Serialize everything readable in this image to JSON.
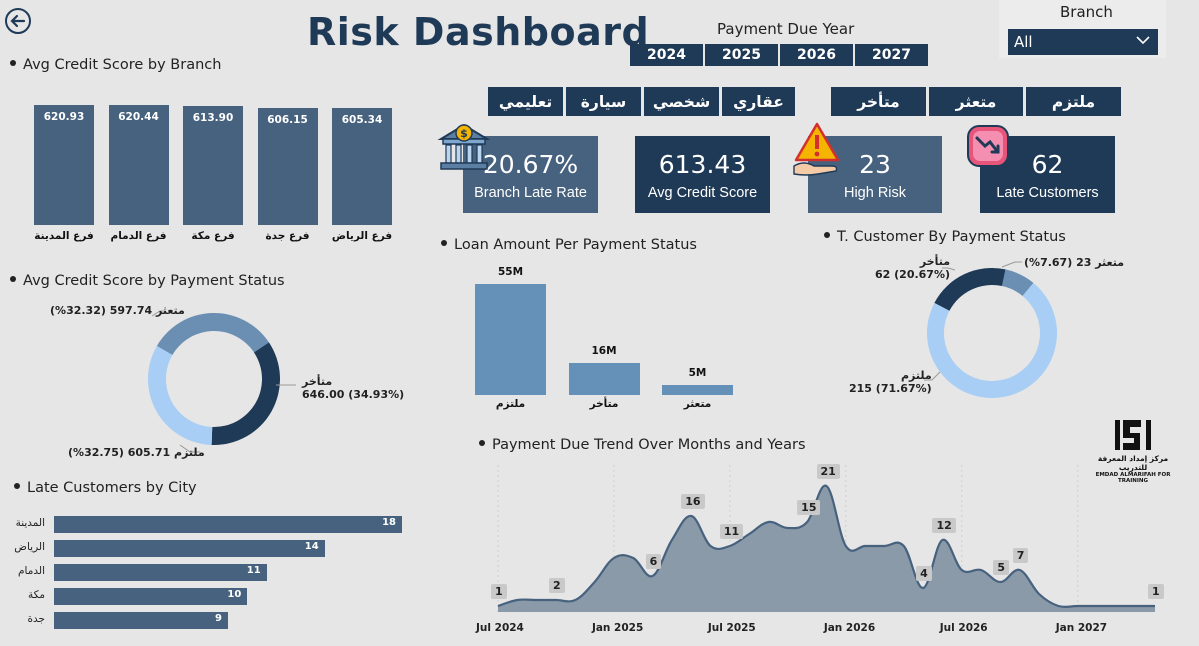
{
  "header": {
    "title": "Risk Dashboard",
    "payment_due_year_label": "Payment Due Year",
    "years": [
      "2024",
      "2025",
      "2026",
      "2027"
    ],
    "branch_label": "Branch",
    "branch_value": "All"
  },
  "loan_types": [
    "تعليمي",
    "سيارة",
    "شخصي",
    "عقاري"
  ],
  "payment_statuses": [
    "متأخر",
    "متعثر",
    "ملتزم"
  ],
  "kpis": {
    "late_rate": {
      "value": "20.67%",
      "label": "Branch Late Rate"
    },
    "avg_credit": {
      "value": "613.43",
      "label": "Avg Credit Score"
    },
    "high_risk": {
      "value": "23",
      "label": "High Risk"
    },
    "late_customers": {
      "value": "62",
      "label": "Late Customers"
    }
  },
  "sections": {
    "avg_by_branch": "Avg Credit Score by Branch",
    "avg_by_status": "Avg Credit Score by Payment Status",
    "late_by_city": "Late Customers by City",
    "loan_by_status": "Loan Amount Per Payment Status",
    "cust_by_status": "T. Customer By Payment Status",
    "trend": "Payment Due Trend Over Months and Years"
  },
  "logo": {
    "line1": "مركز إمداد المعرفة للتدريب",
    "line2": "EMDAD ALMARIFAH FOR TRAINING"
  },
  "chart_data": [
    {
      "id": "avg_by_branch",
      "type": "bar",
      "title": "Avg Credit Score by Branch",
      "categories": [
        "فرع المدينة",
        "فرع الدمام",
        "فرع مكة",
        "فرع جدة",
        "فرع الرياض"
      ],
      "values": [
        620.93,
        620.44,
        613.9,
        606.15,
        605.34
      ],
      "labels": [
        "620.93",
        "620.44",
        "613.90",
        "606.15",
        "605.34"
      ],
      "color": "#47627e"
    },
    {
      "id": "avg_by_status",
      "type": "pie",
      "title": "Avg Credit Score by Payment Status",
      "categories": [
        "متعثر",
        "متأخر",
        "ملتزم"
      ],
      "values": [
        597.74,
        646.0,
        605.71
      ],
      "labels": [
        "597.74 (32.32%)",
        "646.00 (34.93%)",
        "605.71 (32.75%)"
      ],
      "colors": [
        "#6a8fb3",
        "#1f3a57",
        "#a8cef5"
      ]
    },
    {
      "id": "late_by_city",
      "type": "bar",
      "orientation": "horizontal",
      "title": "Late Customers by City",
      "categories": [
        "المدينة",
        "الرياض",
        "الدمام",
        "مكة",
        "جدة"
      ],
      "values": [
        18,
        14,
        11,
        10,
        9
      ],
      "labels": [
        "18",
        "14",
        "11",
        "10",
        "9"
      ],
      "color": "#47627e"
    },
    {
      "id": "loan_by_status",
      "type": "bar",
      "title": "Loan Amount Per Payment Status",
      "categories": [
        "ملتزم",
        "متأخر",
        "متعثر"
      ],
      "values": [
        55,
        16,
        5
      ],
      "labels": [
        "55M",
        "16M",
        "5M"
      ],
      "unit": "M",
      "color": "#6590b8"
    },
    {
      "id": "cust_by_status",
      "type": "pie",
      "title": "T. Customer By Payment Status",
      "categories": [
        "متعثر",
        "ملتزم",
        "متأخر"
      ],
      "values": [
        23,
        215,
        62
      ],
      "labels": [
        "23 (7.67%)",
        "215 (71.67%)",
        "62 (20.67%)"
      ],
      "colors": [
        "#6a8fb3",
        "#a8cef5",
        "#1f3a57"
      ]
    },
    {
      "id": "trend",
      "type": "area",
      "title": "Payment Due Trend Over Months and Years",
      "x": [
        "2024-07",
        "2024-08",
        "2024-09",
        "2024-10",
        "2024-11",
        "2024-12",
        "2025-01",
        "2025-02",
        "2025-03",
        "2025-04",
        "2025-05",
        "2025-06",
        "2025-07",
        "2025-08",
        "2025-09",
        "2025-10",
        "2025-11",
        "2025-12",
        "2026-01",
        "2026-02",
        "2026-03",
        "2026-04",
        "2026-05",
        "2026-06",
        "2026-07",
        "2026-08",
        "2026-09",
        "2026-10",
        "2026-11",
        "2026-12",
        "2027-01",
        "2027-02",
        "2027-03",
        "2027-04",
        "2027-05"
      ],
      "values": [
        1,
        2,
        2,
        2,
        2,
        5,
        9,
        9,
        6,
        12,
        16,
        11,
        11,
        13,
        15,
        14,
        15,
        21,
        11,
        11,
        11,
        11,
        4,
        12,
        7,
        7,
        5,
        7,
        3,
        1,
        1,
        1,
        1,
        1,
        1
      ],
      "point_labels": [
        {
          "index": 0,
          "label": "1"
        },
        {
          "index": 3,
          "label": "2"
        },
        {
          "index": 8,
          "label": "6"
        },
        {
          "index": 10,
          "label": "16"
        },
        {
          "index": 12,
          "label": "11"
        },
        {
          "index": 16,
          "label": "15"
        },
        {
          "index": 17,
          "label": "21"
        },
        {
          "index": 22,
          "label": "4"
        },
        {
          "index": 23,
          "label": "12"
        },
        {
          "index": 26,
          "label": "5"
        },
        {
          "index": 27,
          "label": "7"
        },
        {
          "index": 34,
          "label": "1"
        }
      ],
      "x_ticks": [
        "Jul 2024",
        "Jan 2025",
        "Jul 2025",
        "Jan 2026",
        "Jul 2026",
        "Jan 2027"
      ],
      "ylim": [
        0,
        22
      ],
      "color": "#8a9aa8"
    }
  ]
}
